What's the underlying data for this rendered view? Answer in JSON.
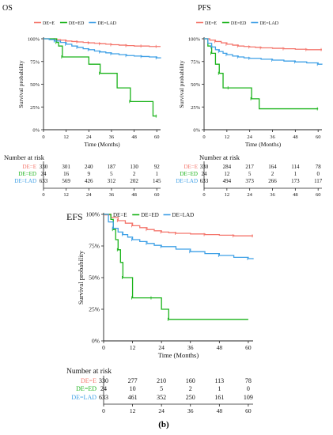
{
  "figure": {
    "caption": "(b)"
  },
  "colors": {
    "E": "#f4766c",
    "ED": "#1ab31a",
    "LAD": "#3fa0e6",
    "axis": "#222222",
    "text": "#111111"
  },
  "chart_data": [
    {
      "type": "line",
      "id": "os",
      "title": "OS",
      "xlabel": "Time (Months)",
      "ylabel": "Survival probability",
      "xlim": [
        0,
        62
      ],
      "ylim": [
        0,
        100
      ],
      "x_ticks": [
        0,
        12,
        24,
        36,
        48,
        60
      ],
      "y_ticks": [
        "0%",
        "25%",
        "50%",
        "75%",
        "100%"
      ],
      "grid": false,
      "legend_placement": "top",
      "series": [
        {
          "name": "DE=E",
          "color_key": "E",
          "x": [
            0,
            3,
            6,
            9,
            12,
            15,
            18,
            21,
            24,
            27,
            30,
            33,
            36,
            40,
            44,
            48,
            52,
            56,
            60,
            62
          ],
          "y": [
            100,
            99.5,
            99,
            98.5,
            97.5,
            97,
            96.5,
            96,
            95.5,
            95,
            94.5,
            94,
            93.5,
            93,
            92.5,
            92,
            92,
            91.5,
            91.5,
            91.5
          ]
        },
        {
          "name": "DE=ED",
          "color_key": "ED",
          "x": [
            0,
            5,
            7,
            8,
            10,
            24,
            30,
            39,
            46,
            58,
            60
          ],
          "y": [
            100,
            100,
            96,
            92,
            80,
            72,
            62,
            46,
            31,
            15,
            15
          ]
        },
        {
          "name": "DE=LAD",
          "color_key": "LAD",
          "x": [
            0,
            3,
            6,
            9,
            12,
            15,
            18,
            21,
            24,
            27,
            30,
            33,
            36,
            40,
            44,
            48,
            52,
            56,
            60,
            62
          ],
          "y": [
            100,
            99,
            97.5,
            96,
            94,
            92,
            90.5,
            89,
            88,
            86.5,
            85.5,
            84.5,
            83.5,
            82.5,
            81.5,
            81,
            80.5,
            80,
            79,
            78.5
          ]
        }
      ],
      "risk_table": {
        "title": "Number at risk",
        "times": [
          0,
          12,
          24,
          36,
          48,
          60
        ],
        "rows": [
          {
            "label": "DE=E",
            "color_key": "E",
            "values": [
              "330",
              "301",
              "240",
              "187",
              "130",
              "92"
            ]
          },
          {
            "label": "DE=ED",
            "color_key": "ED",
            "values": [
              "24",
              "16",
              "9",
              "5",
              "2",
              "1"
            ]
          },
          {
            "label": "DE=LAD",
            "color_key": "LAD",
            "values": [
              "633",
              "569",
              "426",
              "312",
              "202",
              "145"
            ]
          }
        ]
      }
    },
    {
      "type": "line",
      "id": "pfs",
      "title": "PFS",
      "xlabel": "Time (Months)",
      "ylabel": "Survival probability",
      "xlim": [
        0,
        62
      ],
      "ylim": [
        0,
        100
      ],
      "x_ticks": [
        0,
        12,
        24,
        36,
        48,
        60
      ],
      "y_ticks": [
        "0%",
        "25%",
        "50%",
        "75%",
        "100%"
      ],
      "grid": false,
      "legend_placement": "top",
      "series": [
        {
          "name": "DE=E",
          "color_key": "E",
          "x": [
            0,
            3,
            6,
            9,
            12,
            15,
            18,
            21,
            24,
            27,
            30,
            36,
            42,
            48,
            54,
            60,
            62
          ],
          "y": [
            100,
            98.5,
            97,
            95.5,
            94,
            93,
            92,
            91.5,
            91,
            90.5,
            90,
            89.5,
            89,
            88.5,
            88,
            88,
            88
          ]
        },
        {
          "name": "DE=ED",
          "color_key": "ED",
          "x": [
            0,
            2,
            4,
            6,
            8,
            10,
            13,
            20,
            25,
            29,
            60
          ],
          "y": [
            100,
            92,
            84,
            72,
            62,
            46,
            46,
            46,
            34,
            23,
            23
          ]
        },
        {
          "name": "DE=LAD",
          "color_key": "LAD",
          "x": [
            0,
            2,
            4,
            6,
            8,
            10,
            12,
            15,
            18,
            21,
            24,
            30,
            36,
            42,
            48,
            54,
            60,
            62
          ],
          "y": [
            100,
            95,
            91,
            88,
            86,
            84,
            82.5,
            81,
            80,
            79,
            78.5,
            77.5,
            76.5,
            75.5,
            74.5,
            73.5,
            72,
            71.5
          ]
        }
      ],
      "risk_table": {
        "title": "Number at risk",
        "times": [
          0,
          12,
          24,
          36,
          48,
          60
        ],
        "rows": [
          {
            "label": "DE=E",
            "color_key": "E",
            "values": [
              "330",
              "284",
              "217",
              "164",
              "114",
              "78"
            ]
          },
          {
            "label": "DE=ED",
            "color_key": "ED",
            "values": [
              "24",
              "12",
              "5",
              "2",
              "1",
              "0"
            ]
          },
          {
            "label": "DE=LAD",
            "color_key": "LAD",
            "values": [
              "633",
              "494",
              "373",
              "266",
              "173",
              "117"
            ]
          }
        ]
      }
    },
    {
      "type": "line",
      "id": "efs",
      "title": "EFS",
      "xlabel": "Time (Months)",
      "ylabel": "Survival probability",
      "xlim": [
        0,
        62
      ],
      "ylim": [
        0,
        100
      ],
      "x_ticks": [
        0,
        12,
        24,
        36,
        48,
        60
      ],
      "y_ticks": [
        "0%",
        "25%",
        "50%",
        "75%",
        "100%"
      ],
      "grid": false,
      "legend_placement": "top",
      "series": [
        {
          "name": "DE=E",
          "color_key": "E",
          "x": [
            0,
            3,
            6,
            9,
            12,
            15,
            18,
            21,
            24,
            27,
            30,
            36,
            42,
            48,
            54,
            60,
            62
          ],
          "y": [
            100,
            97.5,
            95,
            93,
            91,
            89.5,
            88,
            87,
            86,
            85.5,
            85,
            84.5,
            84,
            83.5,
            83,
            83,
            83
          ]
        },
        {
          "name": "DE=ED",
          "color_key": "ED",
          "x": [
            0,
            3,
            4,
            5,
            6,
            7,
            8,
            10,
            12,
            14,
            20,
            24,
            27,
            60
          ],
          "y": [
            100,
            96,
            88,
            80,
            72,
            62,
            50,
            50,
            34,
            34,
            34,
            25,
            17,
            17
          ]
        },
        {
          "name": "DE=LAD",
          "color_key": "LAD",
          "x": [
            0,
            2,
            4,
            6,
            8,
            10,
            12,
            15,
            18,
            21,
            24,
            30,
            36,
            42,
            48,
            54,
            60,
            62
          ],
          "y": [
            100,
            94,
            89,
            86,
            84,
            82,
            80,
            78.5,
            77,
            75.5,
            74.5,
            72.5,
            70.5,
            69,
            67.5,
            66,
            65,
            64.5
          ]
        }
      ],
      "risk_table": {
        "title": "Number at risk",
        "times": [
          0,
          12,
          24,
          36,
          48,
          60
        ],
        "rows": [
          {
            "label": "DE=E",
            "color_key": "E",
            "values": [
              "330",
              "277",
              "210",
              "160",
              "113",
              "78"
            ]
          },
          {
            "label": "DE=ED",
            "color_key": "ED",
            "values": [
              "24",
              "10",
              "5",
              "2",
              "1",
              "0"
            ]
          },
          {
            "label": "DE=LAD",
            "color_key": "LAD",
            "values": [
              "633",
              "461",
              "352",
              "250",
              "161",
              "109"
            ]
          }
        ]
      }
    }
  ]
}
